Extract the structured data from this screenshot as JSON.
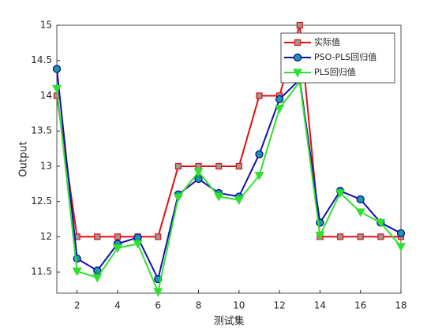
{
  "chart_data": {
    "type": "line",
    "x_label": "测试集",
    "y_label": "Output",
    "x": [
      1,
      2,
      3,
      4,
      5,
      6,
      7,
      8,
      9,
      10,
      11,
      12,
      13,
      14,
      15,
      16,
      17,
      18
    ],
    "xlim": [
      1,
      18
    ],
    "xticks": [
      2,
      4,
      6,
      8,
      10,
      12,
      14,
      16,
      18
    ],
    "ylim": [
      11.2,
      15
    ],
    "yticks": [
      11.5,
      12,
      12.5,
      13,
      13.5,
      14,
      14.5,
      15
    ],
    "legend": "top-right",
    "series": [
      {
        "name": "实际值",
        "color": "#e01010",
        "marker": "square",
        "values": [
          14,
          12,
          12,
          12,
          12,
          12,
          13,
          13,
          13,
          13,
          14,
          14,
          15,
          12,
          12,
          12,
          12,
          12
        ]
      },
      {
        "name": "PSO-PLS回归值",
        "color": "#1010b0",
        "marker": "circle",
        "values": [
          14.38,
          11.69,
          11.52,
          11.9,
          11.99,
          11.4,
          12.6,
          12.82,
          12.62,
          12.57,
          13.17,
          13.95,
          14.23,
          12.2,
          12.65,
          12.53,
          12.2,
          12.05
        ]
      },
      {
        "name": "PLS回归值",
        "color": "#30e030",
        "marker": "triangle-down",
        "values": [
          14.1,
          11.51,
          11.42,
          11.84,
          11.9,
          11.22,
          12.56,
          12.92,
          12.57,
          12.52,
          12.87,
          13.82,
          14.2,
          12.02,
          12.62,
          12.35,
          12.2,
          11.86
        ]
      }
    ]
  }
}
